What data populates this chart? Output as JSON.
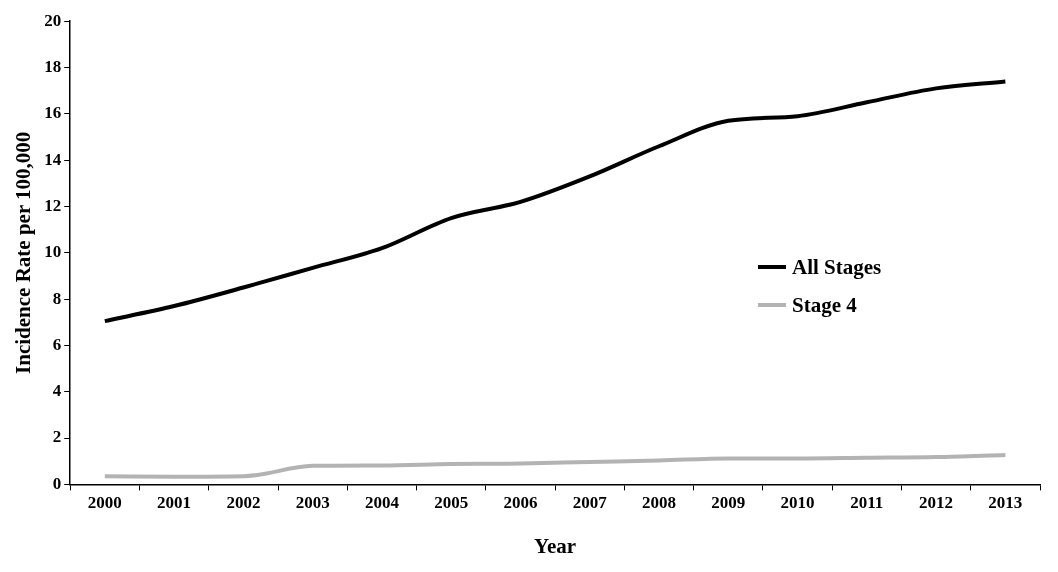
{
  "chart_data": {
    "type": "line",
    "xlabel": "Year",
    "ylabel": "Incidence Rate per 100,000",
    "categories": [
      "2000",
      "2001",
      "2002",
      "2003",
      "2004",
      "2005",
      "2006",
      "2007",
      "2008",
      "2009",
      "2010",
      "2011",
      "2012",
      "2013"
    ],
    "series": [
      {
        "name": "All Stages",
        "color": "#000000",
        "values": [
          7.05,
          7.7,
          8.5,
          9.35,
          10.2,
          11.5,
          12.2,
          13.3,
          14.6,
          15.7,
          15.9,
          16.5,
          17.1,
          17.4
        ]
      },
      {
        "name": "Stage 4",
        "color": "#b3b3b3",
        "values": [
          0.35,
          0.33,
          0.35,
          0.8,
          0.82,
          0.88,
          0.9,
          0.97,
          1.03,
          1.12,
          1.12,
          1.15,
          1.18,
          1.27
        ]
      }
    ],
    "ylim": [
      0,
      20
    ],
    "yticks": [
      0,
      2,
      4,
      6,
      8,
      10,
      12,
      14,
      16,
      18,
      20
    ],
    "grid": false,
    "legend": "right",
    "marker": "none",
    "line_style": "solid"
  }
}
